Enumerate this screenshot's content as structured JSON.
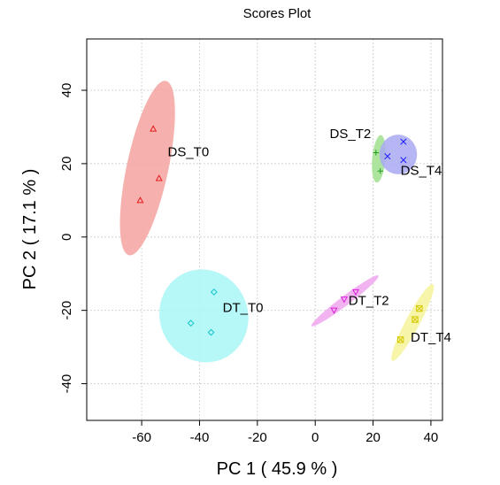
{
  "chart_data": {
    "type": "scatter",
    "title": "Scores Plot",
    "xlabel": "PC 1 ( 45.9 % )",
    "ylabel": "PC 2 ( 17.1 % )",
    "xlim": [
      -79,
      44
    ],
    "ylim": [
      -50,
      54
    ],
    "xticks": [
      -60,
      -40,
      -20,
      0,
      20,
      40
    ],
    "yticks": [
      -40,
      -20,
      0,
      20,
      40
    ],
    "grid": true,
    "series": [
      {
        "name": "DS_T0",
        "color": "#e41a1c",
        "fill": "#f4a3a0",
        "marker": "triangle",
        "points": [
          [
            -56,
            29.5
          ],
          [
            -54,
            16
          ],
          [
            -60.5,
            10
          ]
        ],
        "ellipse": {
          "cx": -58,
          "cy": 18.8,
          "rx": 7.2,
          "ry": 24.3,
          "tilt_deg": 12
        }
      },
      {
        "name": "DS_T2",
        "color": "#1f9e1f",
        "fill": "#9fe08e",
        "marker": "plus",
        "points": [
          [
            21,
            23
          ],
          [
            22.5,
            18
          ]
        ],
        "ellipse": {
          "cx": 22,
          "cy": 21.3,
          "rx": 2.3,
          "ry": 6.5,
          "tilt_deg": 5
        }
      },
      {
        "name": "DS_T4",
        "color": "#1a1aff",
        "fill": "#a9a9f2",
        "marker": "x",
        "points": [
          [
            30.5,
            26
          ],
          [
            25,
            22
          ],
          [
            30.5,
            21
          ]
        ],
        "ellipse": {
          "cx": 28.7,
          "cy": 22.5,
          "rx": 6.5,
          "ry": 5.4,
          "tilt_deg": 0
        }
      },
      {
        "name": "DT_T0",
        "color": "#12c5cc",
        "fill": "#a9f6f6",
        "marker": "diamond",
        "points": [
          [
            -35,
            -15
          ],
          [
            -43,
            -23.5
          ],
          [
            -36,
            -26
          ]
        ],
        "ellipse": {
          "cx": -38.5,
          "cy": -21.5,
          "rx": 15.2,
          "ry": 12.8,
          "tilt_deg": -25
        }
      },
      {
        "name": "DT_T2",
        "color": "#d81ed8",
        "fill": "#f0a6ee",
        "marker": "triangle-down",
        "points": [
          [
            14,
            -15
          ],
          [
            10,
            -17
          ],
          [
            6.5,
            -20
          ]
        ],
        "ellipse": {
          "cx": 10.3,
          "cy": -17.4,
          "rx": 14.5,
          "ry": 1.3,
          "tilt_deg": -37
        }
      },
      {
        "name": "DT_T4",
        "color": "#d4c800",
        "fill": "#f6f39a",
        "marker": "square-x",
        "points": [
          [
            36,
            -19.5
          ],
          [
            34.5,
            -22.5
          ],
          [
            29.5,
            -28
          ]
        ],
        "ellipse": {
          "cx": 33.7,
          "cy": -23.3,
          "rx": 15,
          "ry": 1.9,
          "tilt_deg": -62
        }
      }
    ],
    "annotations": [
      {
        "text": "DS_T0",
        "x": -51,
        "y": 22
      },
      {
        "text": "DS_T2",
        "x": 5,
        "y": 27
      },
      {
        "text": "DS_T4",
        "x": 29.5,
        "y": 17
      },
      {
        "text": "DT_T0",
        "x": -32,
        "y": -20.5
      },
      {
        "text": "DT_T2",
        "x": 11.5,
        "y": -18.5
      },
      {
        "text": "DT_T4",
        "x": 33,
        "y": -28.5
      }
    ]
  }
}
